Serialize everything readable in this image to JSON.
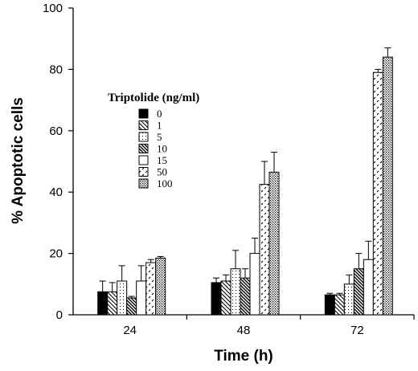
{
  "chart_data": {
    "type": "bar",
    "xlabel": "Time (h)",
    "ylabel": "% Apoptotic cells",
    "ylim": [
      0,
      100
    ],
    "yticks": [
      0,
      20,
      40,
      60,
      80,
      100
    ],
    "categories": [
      "24",
      "48",
      "72"
    ],
    "legend_title": "Triptolide (ng/ml)",
    "legend_position": "upper-left inside plot",
    "series": [
      {
        "name": "0",
        "pattern": "solid",
        "values": [
          7.5,
          10.5,
          6.5
        ],
        "errors": [
          3.5,
          1.5,
          0.5
        ]
      },
      {
        "name": "1",
        "pattern": "diag-back",
        "values": [
          7.5,
          11.0,
          6.5
        ],
        "errors": [
          3.0,
          2.0,
          0.5
        ]
      },
      {
        "name": "5",
        "pattern": "dots",
        "values": [
          11.0,
          15.0,
          10.0
        ],
        "errors": [
          5.0,
          6.0,
          3.0
        ]
      },
      {
        "name": "10",
        "pattern": "diag-dense",
        "values": [
          5.5,
          12.0,
          15.0
        ],
        "errors": [
          0.5,
          3.0,
          5.0
        ]
      },
      {
        "name": "15",
        "pattern": "open",
        "values": [
          11.0,
          20.0,
          18.0
        ],
        "errors": [
          5.0,
          5.0,
          6.0
        ]
      },
      {
        "name": "50",
        "pattern": "dashes",
        "values": [
          17.0,
          42.5,
          79.0
        ],
        "errors": [
          1.0,
          7.5,
          1.0
        ]
      },
      {
        "name": "100",
        "pattern": "dense-dots",
        "values": [
          18.5,
          46.5,
          84.0
        ],
        "errors": [
          0.5,
          6.5,
          3.0
        ]
      }
    ]
  }
}
